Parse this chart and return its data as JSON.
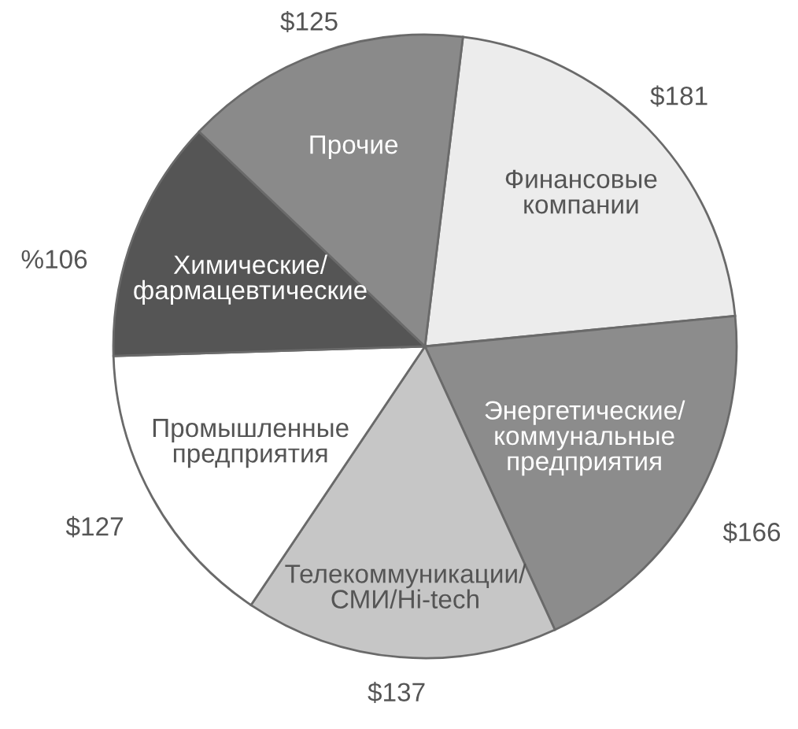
{
  "chart_data": {
    "type": "pie",
    "categories": [
      "Финансовые\nкомпании",
      "Энергетические/\nкоммунальные\nпредприятия",
      "Телекоммуникации/\nСМИ/Hi-tech",
      "Промышленные\nпредприятия",
      "Химические/\nфармацевтические",
      "Прочие"
    ],
    "values": [
      181,
      166,
      137,
      127,
      106,
      125
    ],
    "value_labels": [
      "$181",
      "$166",
      "$137",
      "$127",
      "%106",
      "$125"
    ],
    "colors": [
      "#ececec",
      "#8c8c8c",
      "#c6c6c6",
      "#ffffff",
      "#555555",
      "#8a8a8a"
    ]
  }
}
